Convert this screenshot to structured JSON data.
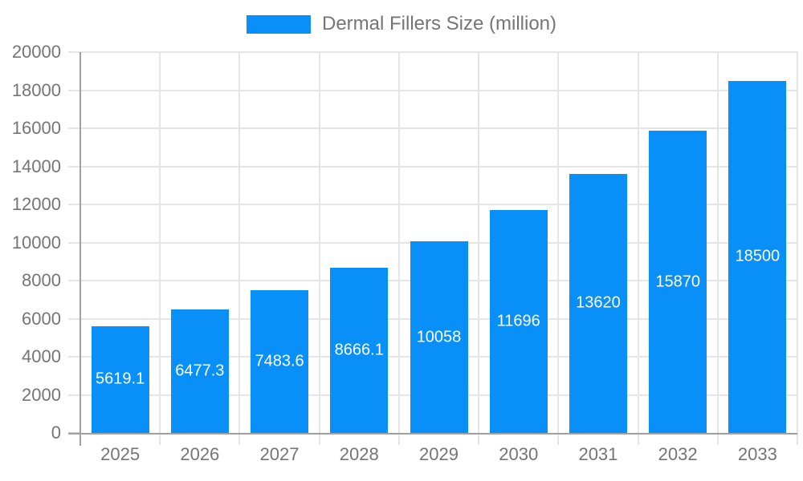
{
  "legend": {
    "label": "Dermal Fillers Size (million)"
  },
  "colors": {
    "bar": "#0990f8",
    "data_label": "#ffffff",
    "axis_text": "#757575",
    "legend_text": "#757575",
    "grid": "#e5e5e5",
    "axis_line": "#a0a0a0",
    "tick": "#d0d0d0",
    "background": "#ffffff"
  },
  "chart_data": {
    "type": "bar",
    "title": "",
    "xlabel": "",
    "ylabel": "",
    "series_name": "Dermal Fillers Size (million)",
    "categories": [
      "2025",
      "2026",
      "2027",
      "2028",
      "2029",
      "2030",
      "2031",
      "2032",
      "2033"
    ],
    "values": [
      5619.1,
      6477.3,
      7483.6,
      8666.1,
      10058,
      11696,
      13620,
      15870,
      18500
    ],
    "value_labels": [
      "5619.1",
      "6477.3",
      "7483.6",
      "8666.1",
      "10058",
      "11696",
      "13620",
      "15870",
      "18500"
    ],
    "ylim": [
      0,
      20000
    ],
    "ytick_step": 2000,
    "ytick_labels": [
      "0",
      "2000",
      "4000",
      "6000",
      "8000",
      "10000",
      "12000",
      "14000",
      "16000",
      "18000",
      "20000"
    ],
    "grid": true,
    "legend_position": "top"
  }
}
